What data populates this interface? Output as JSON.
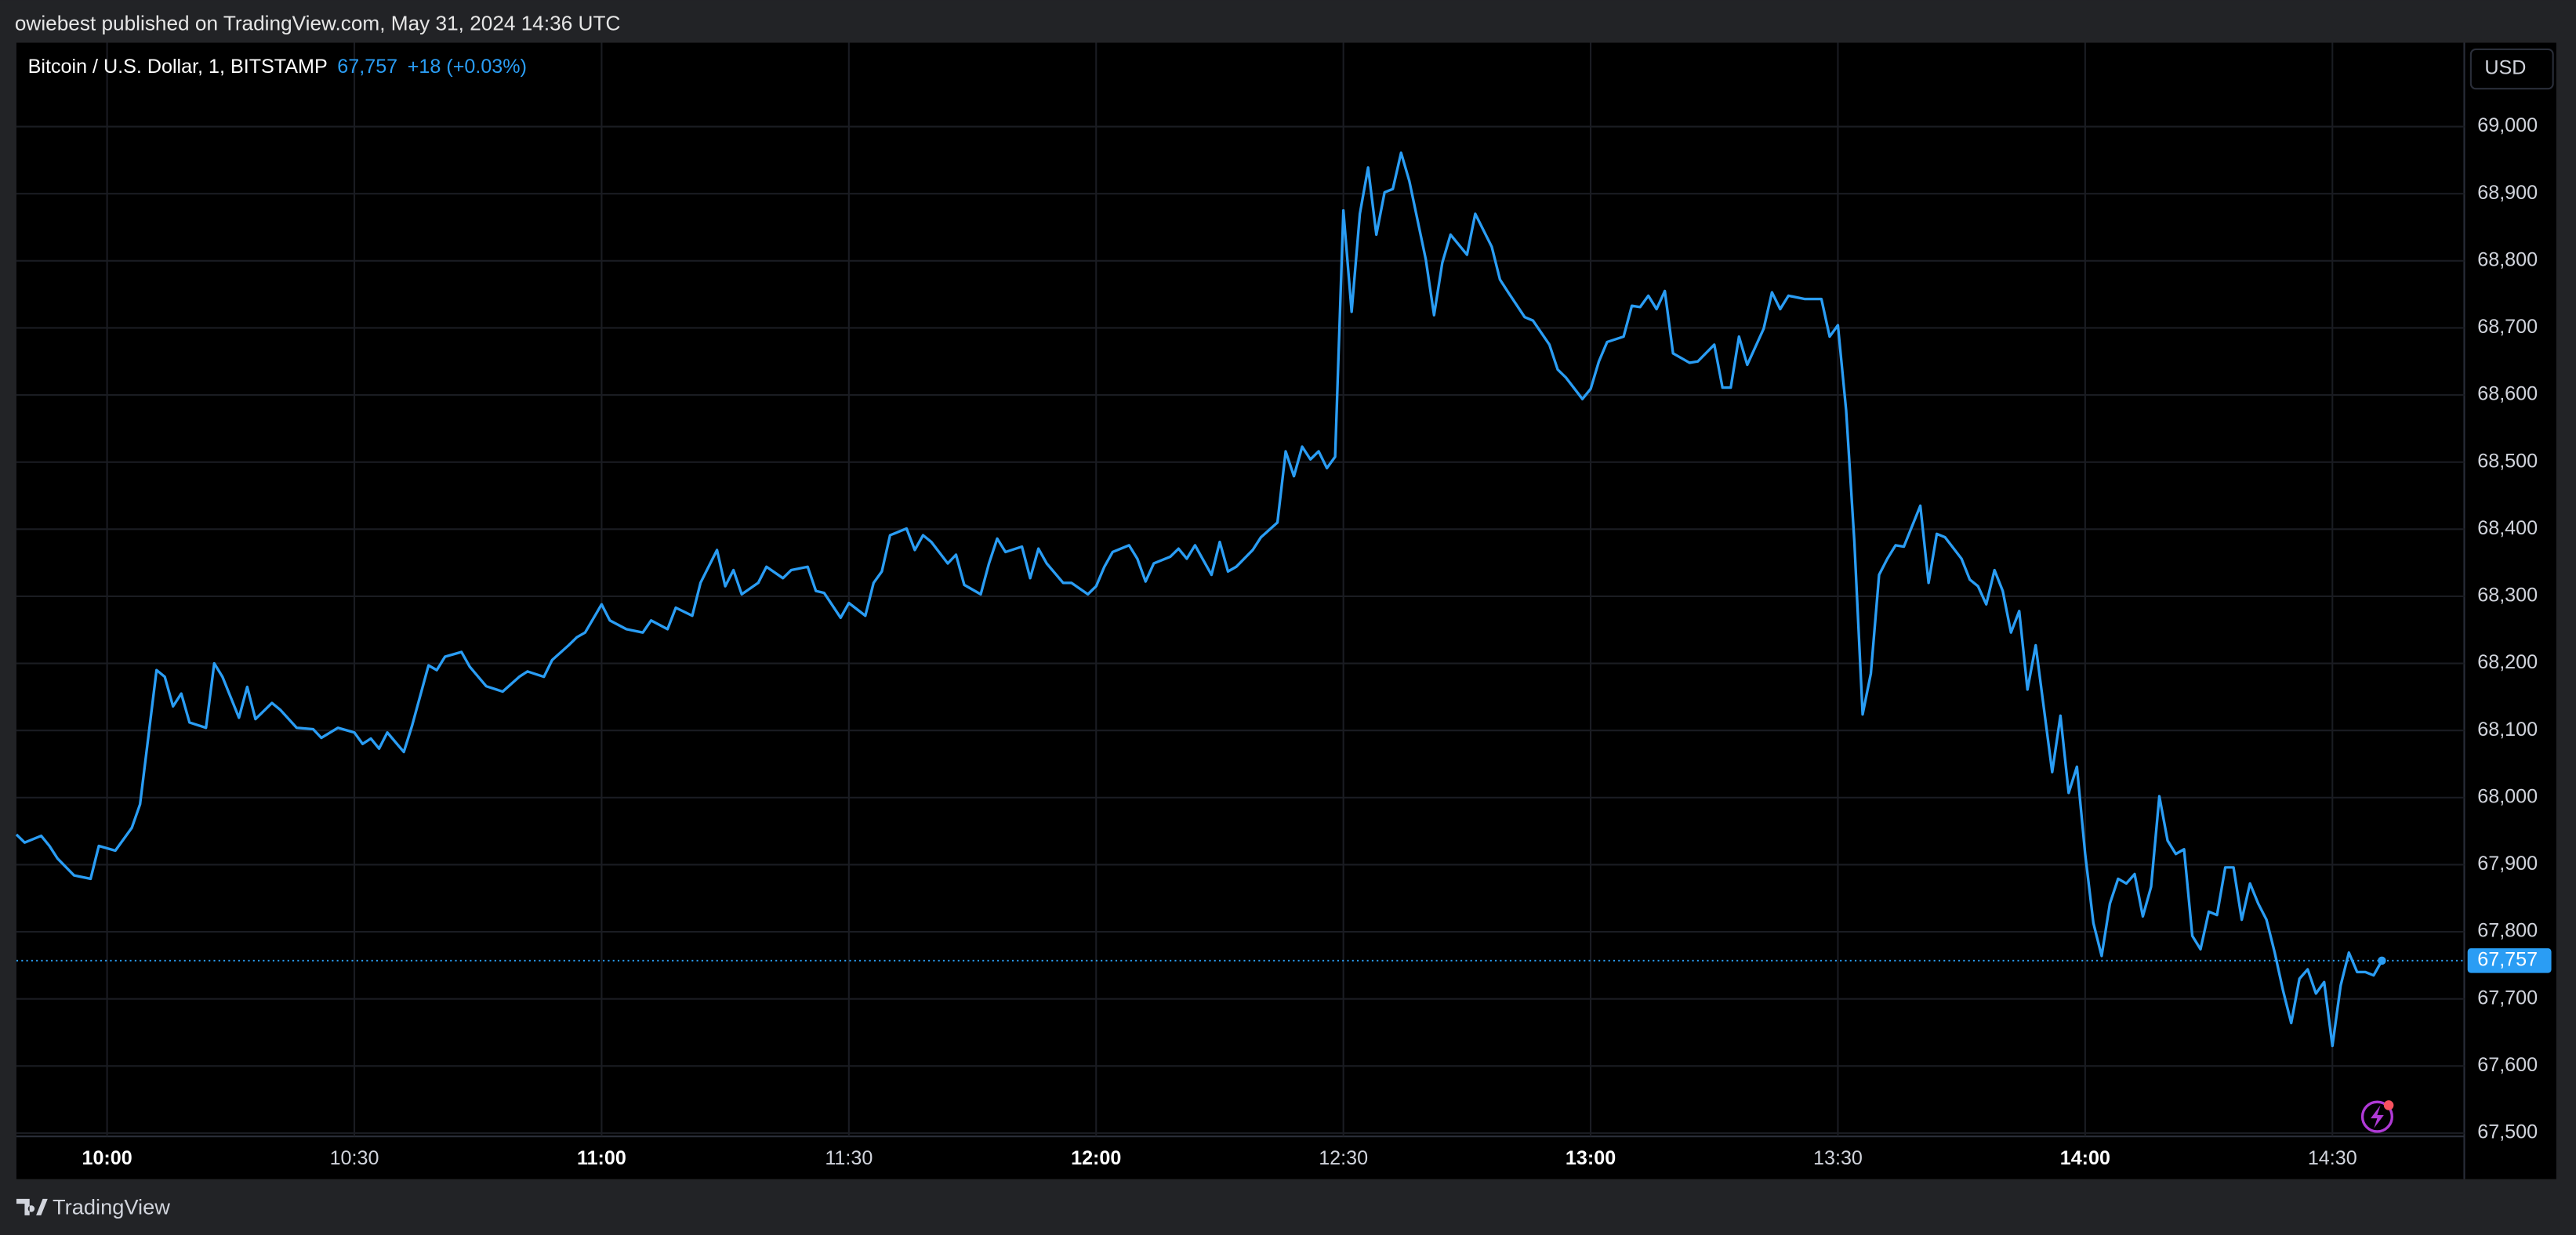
{
  "header": {
    "published": "owiebest published on TradingView.com, May 31, 2024 14:36 UTC"
  },
  "footer": {
    "brand": "TradingView"
  },
  "chart_data": {
    "type": "line",
    "title": "Bitcoin / U.S. Dollar, 1, BITSTAMP",
    "last": {
      "value": 67757,
      "label": "67,757"
    },
    "change": "+18 (+0.03%)",
    "currency": "USD",
    "color": "#2a9df4",
    "grid": true,
    "x": [
      "09:49",
      "09:50",
      "09:52",
      "09:53",
      "09:54",
      "09:56",
      "09:58",
      "09:59",
      "10:01",
      "10:03",
      "10:04",
      "10:06",
      "10:07",
      "10:08",
      "10:09",
      "10:10",
      "10:12",
      "10:13",
      "10:14",
      "10:16",
      "10:17",
      "10:18",
      "10:20",
      "10:21",
      "10:23",
      "10:25",
      "10:26",
      "10:28",
      "10:30",
      "10:31",
      "10:32",
      "10:33",
      "10:34",
      "10:36",
      "10:37",
      "10:39",
      "10:40",
      "10:41",
      "10:43",
      "10:44",
      "10:46",
      "10:48",
      "10:50",
      "10:51",
      "10:53",
      "10:54",
      "10:56",
      "10:57",
      "10:58",
      "11:00",
      "11:01",
      "11:03",
      "11:05",
      "11:06",
      "11:08",
      "11:09",
      "11:11",
      "11:12",
      "11:14",
      "11:15",
      "11:16",
      "11:17",
      "11:19",
      "11:20",
      "11:22",
      "11:23",
      "11:25",
      "11:26",
      "11:27",
      "11:29",
      "11:30",
      "11:32",
      "11:33",
      "11:34",
      "11:35",
      "11:37",
      "11:38",
      "11:39",
      "11:40",
      "11:42",
      "11:43",
      "11:44",
      "11:46",
      "11:47",
      "11:48",
      "11:49",
      "11:51",
      "11:52",
      "11:53",
      "11:54",
      "11:56",
      "11:57",
      "11:59",
      "12:00",
      "12:01",
      "12:02",
      "12:04",
      "12:05",
      "12:06",
      "12:07",
      "12:09",
      "12:10",
      "12:11",
      "12:12",
      "12:14",
      "12:15",
      "12:16",
      "12:17",
      "12:19",
      "12:20",
      "12:22",
      "12:23",
      "12:24",
      "12:25",
      "12:26",
      "12:27",
      "12:28",
      "12:29",
      "12:30",
      "12:31",
      "12:32",
      "12:33",
      "12:34",
      "12:35",
      "12:36",
      "12:37",
      "12:38",
      "12:40",
      "12:41",
      "12:42",
      "12:43",
      "12:45",
      "12:46",
      "12:48",
      "12:49",
      "12:50",
      "12:52",
      "12:53",
      "12:55",
      "12:56",
      "12:57",
      "12:59",
      "13:00",
      "13:01",
      "13:02",
      "13:04",
      "13:05",
      "13:06",
      "13:07",
      "13:08",
      "13:09",
      "13:10",
      "13:12",
      "13:13",
      "13:15",
      "13:16",
      "13:17",
      "13:18",
      "13:19",
      "13:21",
      "13:22",
      "13:23",
      "13:24",
      "13:26",
      "13:28",
      "13:29",
      "13:30",
      "13:31",
      "13:32",
      "13:33",
      "13:34",
      "13:35",
      "13:36",
      "13:37",
      "13:38",
      "13:40",
      "13:41",
      "13:42",
      "13:43",
      "13:45",
      "13:46",
      "13:47",
      "13:48",
      "13:49",
      "13:50",
      "13:51",
      "13:52",
      "13:53",
      "13:54",
      "13:56",
      "13:57",
      "13:58",
      "13:59",
      "14:00",
      "14:01",
      "14:02",
      "14:03",
      "14:04",
      "14:05",
      "14:06",
      "14:07",
      "14:08",
      "14:09",
      "14:10",
      "14:11",
      "14:12",
      "14:13",
      "14:14",
      "14:15",
      "14:16",
      "14:17",
      "14:18",
      "14:19",
      "14:20",
      "14:21",
      "14:22",
      "14:23",
      "14:24",
      "14:25",
      "14:26",
      "14:27",
      "14:28",
      "14:29",
      "14:30",
      "14:31",
      "14:32",
      "14:33",
      "14:34",
      "14:35",
      "14:36"
    ],
    "values": [
      67945,
      67933,
      67943,
      67928,
      67909,
      67884,
      67879,
      67928,
      67921,
      67955,
      67990,
      68190,
      68180,
      68136,
      68155,
      68112,
      68104,
      68200,
      68180,
      68119,
      68165,
      68117,
      68141,
      68131,
      68104,
      68102,
      68089,
      68104,
      68097,
      68080,
      68088,
      68073,
      68097,
      68068,
      68107,
      68197,
      68190,
      68210,
      68217,
      68195,
      68166,
      68158,
      68180,
      68188,
      68180,
      68205,
      68227,
      68239,
      68246,
      68288,
      68264,
      68251,
      68246,
      68264,
      68251,
      68283,
      68271,
      68320,
      68369,
      68315,
      68339,
      68303,
      68320,
      68344,
      68327,
      68339,
      68344,
      68308,
      68305,
      68268,
      68290,
      68271,
      68320,
      68337,
      68391,
      68401,
      68369,
      68391,
      68381,
      68349,
      68362,
      68317,
      68303,
      68349,
      68386,
      68366,
      68374,
      68327,
      68371,
      68349,
      68320,
      68320,
      68303,
      68315,
      68344,
      68366,
      68376,
      68356,
      68322,
      68349,
      68359,
      68371,
      68356,
      68376,
      68332,
      68381,
      68337,
      68344,
      68369,
      68388,
      68410,
      68516,
      68479,
      68523,
      68504,
      68516,
      68491,
      68508,
      68875,
      68724,
      68870,
      68939,
      68839,
      68902,
      68907,
      68961,
      68919,
      68802,
      68719,
      68797,
      68839,
      68809,
      68870,
      68821,
      68772,
      68753,
      68716,
      68711,
      68675,
      68638,
      68626,
      68594,
      68609,
      68650,
      68679,
      68687,
      68733,
      68731,
      68748,
      68728,
      68755,
      68662,
      68648,
      68650,
      68675,
      68611,
      68611,
      68687,
      68645,
      68699,
      68753,
      68728,
      68748,
      68743,
      68743,
      68687,
      68704,
      68577,
      68381,
      68124,
      68185,
      68332,
      68356,
      68376,
      68374,
      68435,
      68320,
      68393,
      68388,
      68356,
      68325,
      68315,
      68288,
      68339,
      68308,
      68246,
      68278,
      68161,
      68227,
      68038,
      68122,
      68007,
      68046,
      67916,
      67813,
      67764,
      67842,
      67879,
      67872,
      67886,
      67823,
      67867,
      68002,
      67936,
      67916,
      67923,
      67794,
      67774,
      67830,
      67825,
      67896,
      67896,
      67818,
      67872,
      67842,
      67818,
      67769,
      67713,
      67664,
      67730,
      67744,
      67708,
      67725,
      67630,
      67720,
      67769,
      67740,
      67740,
      67735,
      67757
    ],
    "xlim": [
      "09:49",
      "14:46"
    ],
    "xticks": [
      "10:00",
      "10:30",
      "11:00",
      "11:30",
      "12:00",
      "12:30",
      "13:00",
      "13:30",
      "14:00",
      "14:30"
    ],
    "ylim": [
      67495,
      69125
    ],
    "yticks": [
      {
        "value": 67500,
        "label": "67,500"
      },
      {
        "value": 67600,
        "label": "67,600"
      },
      {
        "value": 67700,
        "label": "67,700"
      },
      {
        "value": 67800,
        "label": "67,800"
      },
      {
        "value": 67900,
        "label": "67,900"
      },
      {
        "value": 68000,
        "label": "68,000"
      },
      {
        "value": 68100,
        "label": "68,100"
      },
      {
        "value": 68200,
        "label": "68,200"
      },
      {
        "value": 68300,
        "label": "68,300"
      },
      {
        "value": 68400,
        "label": "68,400"
      },
      {
        "value": 68500,
        "label": "68,500"
      },
      {
        "value": 68600,
        "label": "68,600"
      },
      {
        "value": 68700,
        "label": "68,700"
      },
      {
        "value": 68800,
        "label": "68,800"
      },
      {
        "value": 68900,
        "label": "68,900"
      },
      {
        "value": 69000,
        "label": "69,000"
      }
    ]
  }
}
